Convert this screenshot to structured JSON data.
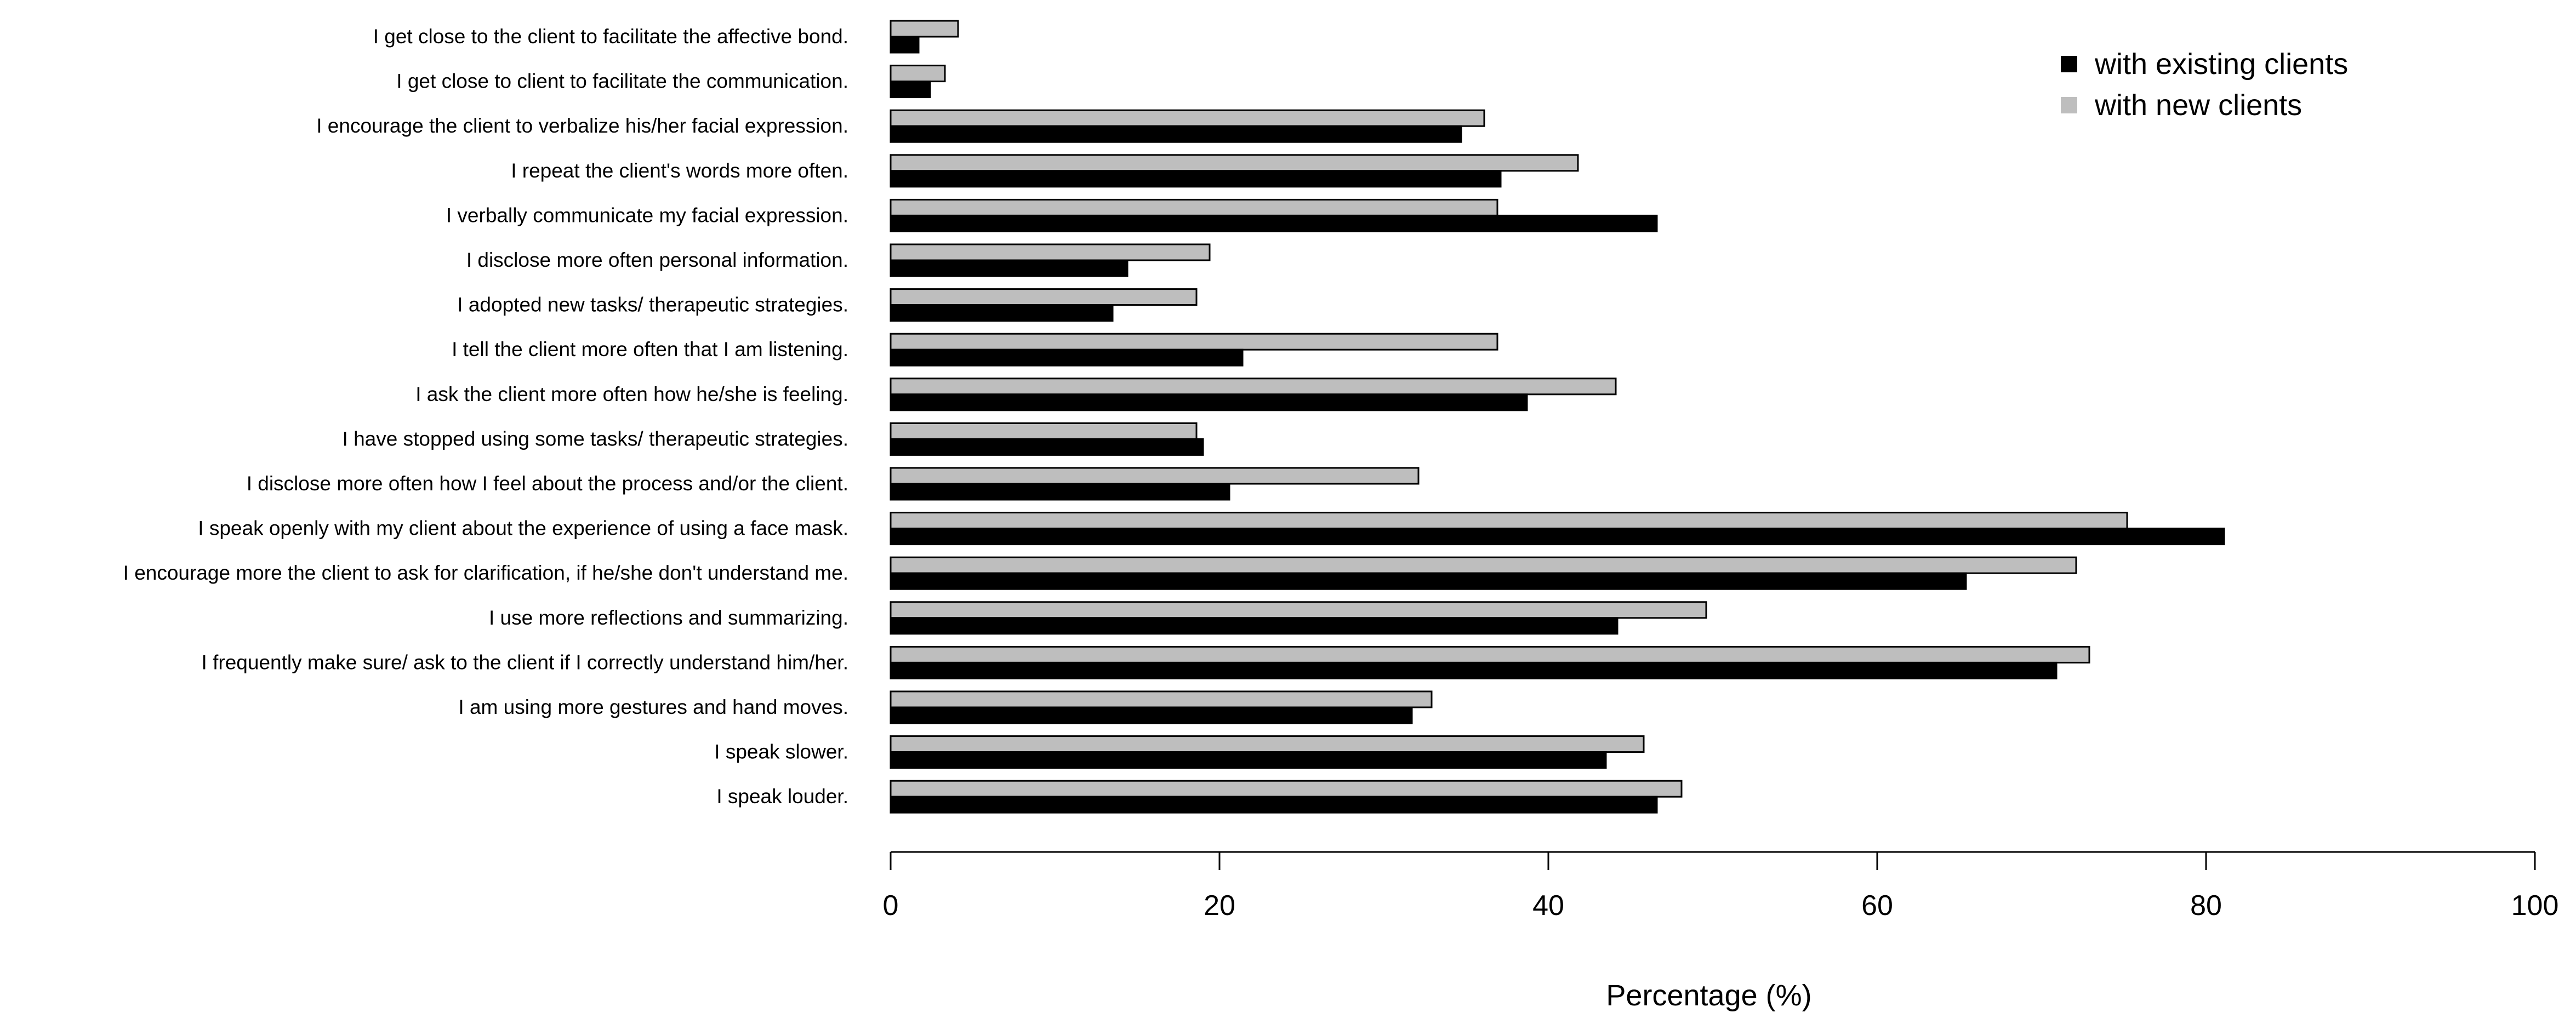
{
  "chart_data": {
    "type": "bar",
    "orientation": "horizontal",
    "categories": [
      "I get close to the client to facilitate the affective bond.",
      "I get close to client to facilitate the communication.",
      "I encourage the client to verbalize his/her facial expression.",
      "I repeat the client's words more often.",
      "I verbally communicate my facial expression.",
      "I disclose more often personal information.",
      "I adopted new tasks/ therapeutic strategies.",
      "I tell the client more often that I am listening.",
      "I ask the client more often how he/she is feeling.",
      "I have stopped using some tasks/ therapeutic strategies.",
      "I disclose more often how I feel about the process and/or the client.",
      "I speak openly with my client about the experience of using a face mask.",
      "I encourage more the client to ask for clarification, if he/she don't understand me.",
      "I use more reflections and summarizing.",
      "I frequently make sure/ ask to the client if I correctly understand him/her.",
      "I am using more gestures and hand moves.",
      "I speak slower.",
      "I speak louder."
    ],
    "series": [
      {
        "name": "with existing clients",
        "color": "#000000",
        "values": [
          1.7,
          2.4,
          34.7,
          37.1,
          46.6,
          14.4,
          13.5,
          21.4,
          38.7,
          19.0,
          20.6,
          81.1,
          65.4,
          44.2,
          70.9,
          31.7,
          43.5,
          46.6
        ]
      },
      {
        "name": "with new clients",
        "color": "#bebebe",
        "values": [
          4.1,
          3.3,
          36.1,
          41.8,
          36.9,
          19.4,
          18.6,
          36.9,
          44.1,
          18.6,
          32.1,
          75.2,
          72.1,
          49.6,
          72.9,
          32.9,
          45.8,
          48.1
        ]
      }
    ],
    "xlabel": "Percentage (%)",
    "xlim": [
      0,
      100
    ],
    "xticks": [
      0,
      20,
      40,
      60,
      80,
      100
    ],
    "grid": false,
    "legend_position": "top-right"
  }
}
